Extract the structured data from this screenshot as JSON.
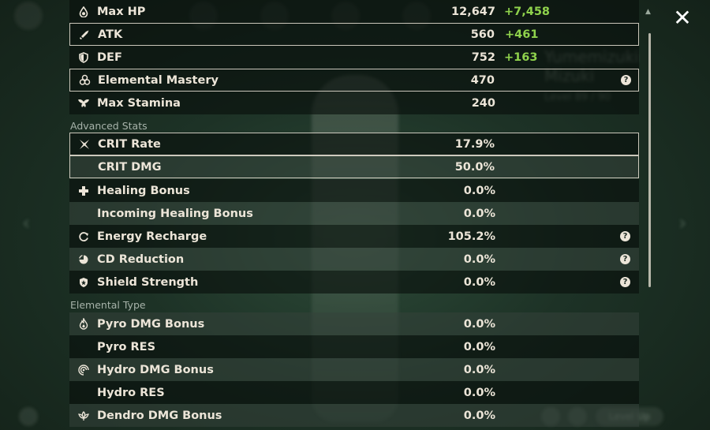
{
  "stats_top": [
    {
      "label": "Max HP",
      "value": "12,647",
      "bonus": "+7,458",
      "icon": "hp-drop-icon",
      "style": "dark",
      "selected": false,
      "help": false
    },
    {
      "label": "ATK",
      "value": "560",
      "bonus": "+461",
      "icon": "sword-icon",
      "style": "dark",
      "selected": true,
      "help": false
    },
    {
      "label": "DEF",
      "value": "752",
      "bonus": "+163",
      "icon": "shield-icon",
      "style": "dark",
      "selected": false,
      "help": false
    },
    {
      "label": "Elemental Mastery",
      "value": "470",
      "bonus": "",
      "icon": "elemental-mastery-icon",
      "style": "dark",
      "selected": true,
      "help": true
    },
    {
      "label": "Max Stamina",
      "value": "240",
      "bonus": "",
      "icon": "stamina-wings-icon",
      "style": "dark",
      "selected": false,
      "help": false
    }
  ],
  "advanced_heading": "Advanced Stats",
  "stats_advanced": [
    {
      "label": "CRIT Rate",
      "value": "17.9%",
      "icon": "crit-rate-icon",
      "style": "dark",
      "selected": true,
      "help": false
    },
    {
      "label": "CRIT DMG",
      "value": "50.0%",
      "icon": "",
      "style": "light",
      "selected": true,
      "help": false
    },
    {
      "label": "Healing Bonus",
      "value": "0.0%",
      "icon": "plus-cross-icon",
      "style": "dark",
      "selected": false,
      "help": false
    },
    {
      "label": "Incoming Healing Bonus",
      "value": "0.0%",
      "icon": "",
      "style": "light",
      "selected": false,
      "help": false
    },
    {
      "label": "Energy Recharge",
      "value": "105.2%",
      "icon": "energy-recharge-icon",
      "style": "dark",
      "selected": false,
      "help": true
    },
    {
      "label": "CD Reduction",
      "value": "0.0%",
      "icon": "cd-reduction-icon",
      "style": "light",
      "selected": false,
      "help": true
    },
    {
      "label": "Shield Strength",
      "value": "0.0%",
      "icon": "shield-strength-icon",
      "style": "dark",
      "selected": false,
      "help": true
    }
  ],
  "elemental_heading": "Elemental Type",
  "stats_elemental": [
    {
      "label": "Pyro DMG Bonus",
      "value": "0.0%",
      "icon": "pyro-icon",
      "style": "light",
      "selected": false,
      "help": false
    },
    {
      "label": "Pyro RES",
      "value": "0.0%",
      "icon": "",
      "style": "dark",
      "selected": false,
      "help": false
    },
    {
      "label": "Hydro DMG Bonus",
      "value": "0.0%",
      "icon": "hydro-icon",
      "style": "light",
      "selected": false,
      "help": false
    },
    {
      "label": "Hydro RES",
      "value": "0.0%",
      "icon": "",
      "style": "dark",
      "selected": false,
      "help": false
    },
    {
      "label": "Dendro DMG Bonus",
      "value": "0.0%",
      "icon": "dendro-icon",
      "style": "light",
      "selected": false,
      "help": false
    }
  ],
  "help_glyph": "?",
  "close_glyph": "✕",
  "background": {
    "character_name": "Yumemizuki Mizuki",
    "level_text": "Level 89 / 90",
    "level_up_label": "Level Up",
    "nav_prev": "‹",
    "nav_next": "›"
  },
  "colors": {
    "bonus": "#8fd24c",
    "text": "#ece5d8",
    "section": "#a7b3aa"
  }
}
